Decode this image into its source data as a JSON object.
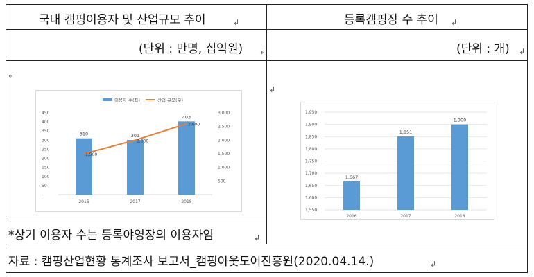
{
  "table": {
    "left_header": "국내 캠핑이용자 및 산업규모 추이",
    "right_header": "등록캠핑장 수 추이",
    "left_unit": "(단위 : 만명, 십억원)",
    "right_unit": "(단위 : 개)",
    "note": "*상기 이용자 수는 등록야영장의 이용자임",
    "source": "자료 : 캠핑산업현황 통계조사 보고서_캠핑아웃도어진흥원(2020.04.14.)",
    "paragraph_mark": "↲"
  },
  "chart_data": [
    {
      "type": "bar",
      "categories": [
        "2016",
        "2017",
        "2018"
      ],
      "series": [
        {
          "name": "이용자 수(좌)",
          "values": [
            310,
            301,
            403
          ],
          "color": "#5b9bd5",
          "axis": "left"
        },
        {
          "name": "산업 규모(우)",
          "type": "line",
          "values": [
            1500,
            2000,
            2600
          ],
          "color": "#ed7d31",
          "axis": "right"
        }
      ],
      "value_labels": {
        "bars": [
          "310",
          "301",
          "403"
        ],
        "line": [
          "1,500",
          "2,000",
          "2,600"
        ]
      },
      "y_left": {
        "ticks": [
          "450",
          "400",
          "350",
          "300",
          "250",
          "200",
          "150",
          "100",
          "50",
          "-"
        ],
        "ylim": [
          0,
          450
        ]
      },
      "y_right": {
        "ticks": [
          "3,000",
          "2,500",
          "2,000",
          "1,500",
          "1,000",
          "500"
        ],
        "ylim": [
          0,
          3000
        ]
      },
      "grid": false,
      "legend": "top-center"
    },
    {
      "type": "bar",
      "categories": [
        "2016",
        "2017",
        "2018"
      ],
      "values": [
        1667,
        1851,
        1900
      ],
      "value_labels": [
        "1,667",
        "1,851",
        "1,900"
      ],
      "color": "#5b9bd5",
      "y_axis": {
        "ticks": [
          "1,950",
          "1,900",
          "1,850",
          "1,800",
          "1,750",
          "1,700",
          "1,650",
          "1,600",
          "1,550"
        ],
        "ylim": [
          1550,
          1950
        ]
      },
      "grid": true
    }
  ]
}
